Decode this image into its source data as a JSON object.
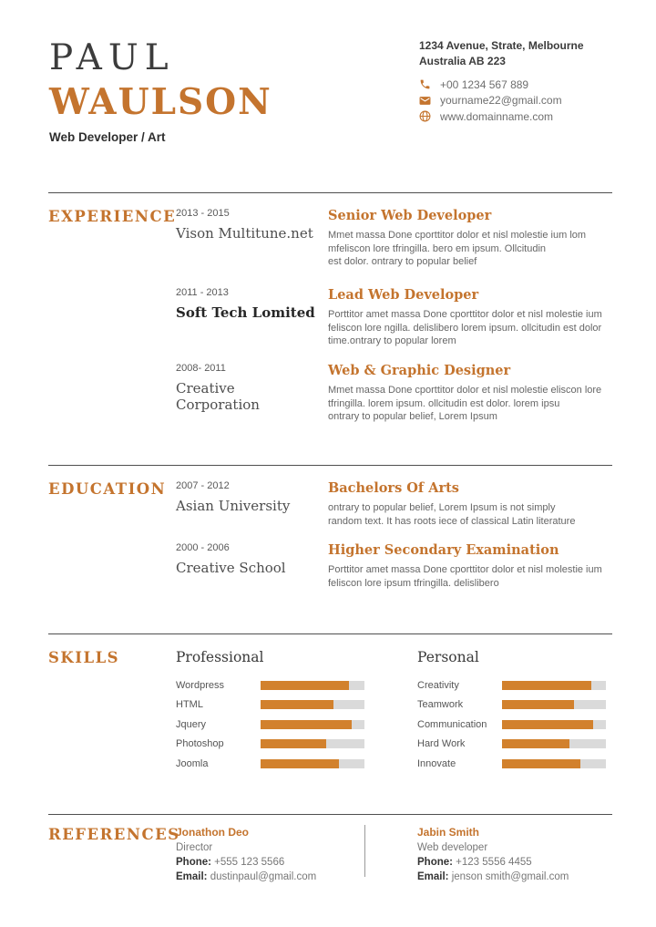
{
  "accent": "#C4742E",
  "bar_color": "#D2812D",
  "header": {
    "first_name": "PAUL",
    "last_name": "WAULSON",
    "subtitle": "Web Developer / Art",
    "address_line1": "1234 Avenue, Strate, Melbourne",
    "address_line2": "Australia AB 223",
    "phone": "+00 1234 567 889",
    "email": "yourname22@gmail.com",
    "website": "www.domainname.com"
  },
  "experience": {
    "title": "EXPERIENCE",
    "entries": [
      {
        "dates": "2013 - 2015",
        "org": "Vison Multitune.net",
        "role": "Senior Web Developer",
        "desc": "Mmet massa Done cporttitor dolor et nisl molestie ium lom\nmfeliscon lore  tfringilla. bero em ipsum. Ollcitudin\nest dolor. ontrary to popular belief"
      },
      {
        "dates": "2011 - 2013",
        "org": "Soft Tech Lomited",
        "role": "Lead Web Developer",
        "desc": "Porttitor amet massa Done cporttitor dolor et nisl molestie ium\nfeliscon lore ngilla. delislibero lorem ipsum. ollcitudin est dolor\ntime.ontrary to popular lorem"
      },
      {
        "dates": "2008- 2011",
        "org": "Creative Corporation",
        "role": "Web & Graphic Designer",
        "desc": "Mmet massa Done cporttitor dolor et nisl molestie eliscon lore\ntfringilla. lorem ipsum. ollcitudin est dolor. lorem ipsu\nontrary to popular belief, Lorem Ipsum"
      }
    ]
  },
  "education": {
    "title": "EDUCATION",
    "entries": [
      {
        "dates": "2007 - 2012",
        "org": "Asian University",
        "role": "Bachelors Of Arts",
        "desc": "ontrary to popular belief, Lorem Ipsum is not simply\nrandom text. It has roots iece of classical Latin literature"
      },
      {
        "dates": "2000 - 2006",
        "org": "Creative School",
        "role": "Higher Secondary Examination",
        "desc": "Porttitor amet massa Done cporttitor dolor et nisl molestie ium\nfeliscon lore ipsum tfringilla. delislibero"
      }
    ]
  },
  "skills": {
    "title": "SKILLS",
    "groups": [
      {
        "title": "Professional",
        "items": [
          {
            "name": "Wordpress",
            "value": 85
          },
          {
            "name": "HTML",
            "value": 70
          },
          {
            "name": "Jquery",
            "value": 88
          },
          {
            "name": "Photoshop",
            "value": 63
          },
          {
            "name": "Joomla",
            "value": 75
          }
        ]
      },
      {
        "title": "Personal",
        "items": [
          {
            "name": "Creativity",
            "value": 86
          },
          {
            "name": "Teamwork",
            "value": 69
          },
          {
            "name": "Communication",
            "value": 88
          },
          {
            "name": "Hard Work",
            "value": 65
          },
          {
            "name": "Innovate",
            "value": 75
          }
        ]
      }
    ]
  },
  "references": {
    "title": "REFERENCES",
    "people": [
      {
        "name": "Jonathon Deo",
        "role": "Director",
        "phone_label": "Phone:",
        "phone": " +555 123 5566",
        "email_label": "Email:",
        "email": " dustinpaul@gmail.com"
      },
      {
        "name": "Jabin Smith",
        "role": "Web developer",
        "phone_label": "Phone:",
        "phone": " +123 5556 4455",
        "email_label": "Email:",
        "email": " jenson smith@gmail.com"
      }
    ]
  }
}
